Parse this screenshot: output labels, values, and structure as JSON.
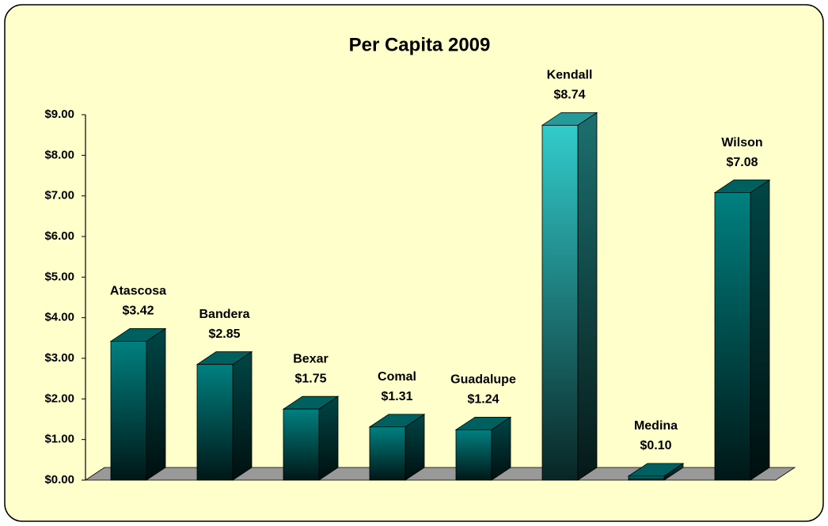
{
  "chart_data": {
    "type": "bar3d",
    "title": "Per Capita 2009",
    "categories": [
      "Atascosa",
      "Bandera",
      "Bexar",
      "Comal",
      "Guadalupe",
      "Kendall",
      "Medina",
      "Wilson"
    ],
    "values": [
      3.42,
      2.85,
      1.75,
      1.31,
      1.24,
      8.74,
      0.1,
      7.08
    ],
    "value_labels": [
      "$3.42",
      "$2.85",
      "$1.75",
      "$1.31",
      "$1.24",
      "$8.74",
      "$0.10",
      "$7.08"
    ],
    "colors": [
      "#008080",
      "#008080",
      "#008080",
      "#008080",
      "#008080",
      "#33cccc",
      "#008080",
      "#008080"
    ],
    "ylim": [
      0,
      9
    ],
    "yticks": [
      {
        "value": 0,
        "label": "$0.00"
      },
      {
        "value": 1,
        "label": "$1.00"
      },
      {
        "value": 2,
        "label": "$2.00"
      },
      {
        "value": 3,
        "label": "$3.00"
      },
      {
        "value": 4,
        "label": "$4.00"
      },
      {
        "value": 5,
        "label": "$5.00"
      },
      {
        "value": 6,
        "label": "$6.00"
      },
      {
        "value": 7,
        "label": "$7.00"
      },
      {
        "value": 8,
        "label": "$8.00"
      },
      {
        "value": 9,
        "label": "$9.00"
      }
    ],
    "grid": false
  }
}
